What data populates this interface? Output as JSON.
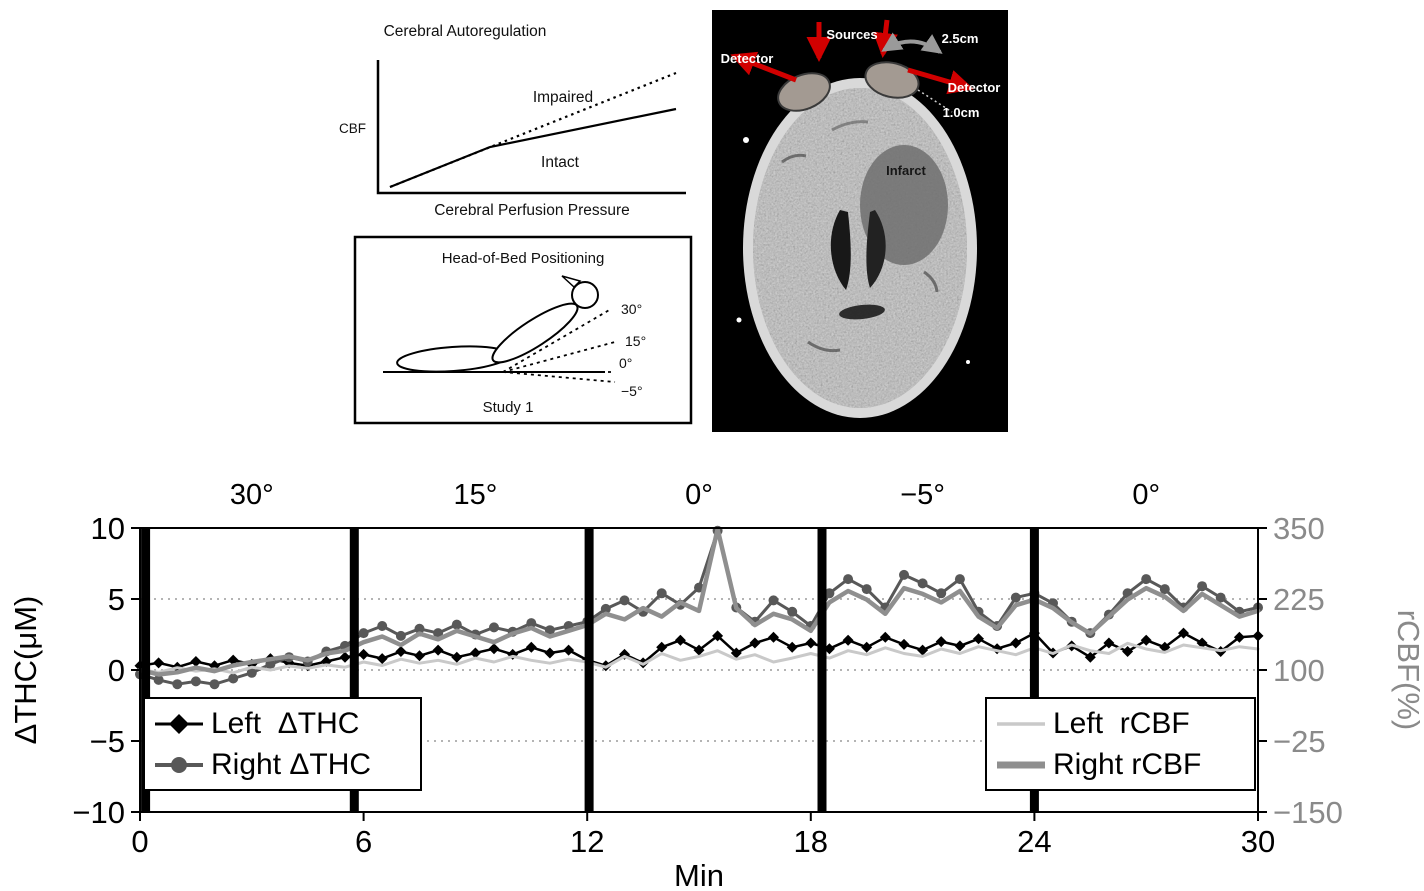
{
  "panels": {
    "autoregulation": {
      "title": "Cerebral Autoregulation",
      "ylabel": "CBF",
      "xlabel": "Cerebral Perfusion Pressure",
      "impaired_label": "Impaired",
      "intact_label": "Intact"
    },
    "head_of_bed": {
      "title": "Head-of-Bed Positioning",
      "angles": [
        "30°",
        "15°",
        "0°",
        "−5°"
      ],
      "caption": "Study 1"
    },
    "ct_scan": {
      "detector_left": "Detector",
      "sources": "Sources",
      "separation": "2.5cm",
      "detector_right": "Detector",
      "depth": "1.0cm",
      "infarct": "Infarct"
    }
  },
  "chart_data": {
    "type": "line",
    "title": "",
    "xlabel": "Min",
    "ylabel_left": "ΔTHC(μM)",
    "ylabel_right": "rCBF(%)",
    "xlim": [
      0,
      30
    ],
    "ylim_left": [
      -10,
      10
    ],
    "ylim_right": [
      -150,
      350
    ],
    "xticks": [
      0,
      6,
      12,
      18,
      24,
      30
    ],
    "yticks_left": [
      10,
      5,
      0,
      -5,
      -10
    ],
    "yticks_right": [
      350,
      225,
      100,
      -25,
      -150
    ],
    "top_axis_x": [
      3,
      9,
      15,
      21,
      27
    ],
    "top_axis_labels": [
      "30°",
      "15°",
      "0°",
      "−5°",
      "0°"
    ],
    "intervention_bars_x": [
      0.15,
      5.75,
      12.05,
      18.3,
      24.0
    ],
    "gridlines_left": [
      5,
      0,
      -5
    ],
    "grid": "dotted horizontal",
    "legend_position": "lower left and lower right",
    "axis_color_right": "#8a8a8a",
    "x_start": 0,
    "x_step": 0.5,
    "series": [
      {
        "name": "Left  ΔTHC",
        "axis": "left",
        "color": "#000000",
        "marker": "diamond",
        "linewidth": 2.5,
        "values": [
          0.3,
          0.5,
          0.2,
          0.6,
          0.3,
          0.7,
          0.4,
          0.8,
          0.5,
          0.3,
          0.6,
          0.9,
          1.1,
          0.8,
          1.3,
          1.0,
          1.4,
          0.9,
          1.2,
          1.5,
          1.1,
          1.6,
          1.2,
          1.4,
          0.7,
          0.3,
          1.1,
          0.5,
          1.6,
          2.1,
          1.4,
          2.4,
          1.2,
          1.9,
          2.3,
          1.6,
          1.9,
          1.5,
          2.1,
          1.6,
          2.3,
          1.8,
          1.4,
          2.0,
          1.7,
          2.2,
          1.5,
          1.9,
          2.6,
          1.2,
          1.7,
          0.9,
          1.9,
          1.3,
          2.1,
          1.6,
          2.6,
          1.9,
          1.3,
          2.3,
          2.4
        ]
      },
      {
        "name": "Right ΔTHC",
        "axis": "left",
        "color": "#585858",
        "marker": "circle",
        "linewidth": 3,
        "values": [
          -0.3,
          -0.7,
          -1.0,
          -0.8,
          -1.0,
          -0.6,
          -0.2,
          0.4,
          0.9,
          0.6,
          1.3,
          1.7,
          2.6,
          3.1,
          2.4,
          2.9,
          2.6,
          3.2,
          2.5,
          3.0,
          2.7,
          3.3,
          2.8,
          3.1,
          3.4,
          4.3,
          4.9,
          4.1,
          5.4,
          4.6,
          5.8,
          9.8,
          4.4,
          3.4,
          4.9,
          4.1,
          3.1,
          5.4,
          6.4,
          5.7,
          4.4,
          6.7,
          6.1,
          5.4,
          6.4,
          4.1,
          3.1,
          5.1,
          5.4,
          4.7,
          3.4,
          2.6,
          3.9,
          5.4,
          6.4,
          5.7,
          4.4,
          5.9,
          5.1,
          4.1,
          4.4
        ]
      },
      {
        "name": "Left  rCBF",
        "axis": "right",
        "color": "#c9c9c9",
        "marker": "none",
        "linewidth": 3,
        "values": [
          100,
          96,
          104,
          98,
          102,
          95,
          105,
          100,
          107,
          103,
          109,
          105,
          114,
          108,
          119,
          112,
          117,
          110,
          121,
          114,
          124,
          117,
          112,
          119,
          114,
          105,
          124,
          110,
          129,
          117,
          124,
          134,
          119,
          127,
          114,
          121,
          129,
          121,
          134,
          127,
          139,
          129,
          124,
          137,
          129,
          141,
          134,
          127,
          139,
          129,
          144,
          134,
          129,
          147,
          137,
          131,
          144,
          139,
          134,
          141,
          137
        ]
      },
      {
        "name": "Right rCBF",
        "axis": "right",
        "color": "#8f8f8f",
        "marker": "none",
        "linewidth": 4.5,
        "values": [
          100,
          92,
          96,
          104,
          98,
          108,
          114,
          119,
          124,
          117,
          129,
          134,
          149,
          159,
          144,
          164,
          154,
          169,
          159,
          149,
          164,
          174,
          159,
          169,
          179,
          199,
          189,
          209,
          194,
          219,
          204,
          348,
          209,
          179,
          199,
          189,
          169,
          219,
          239,
          224,
          199,
          244,
          234,
          219,
          239,
          194,
          174,
          214,
          224,
          209,
          184,
          164,
          194,
          224,
          244,
          229,
          204,
          234,
          214,
          194,
          204
        ]
      }
    ]
  }
}
